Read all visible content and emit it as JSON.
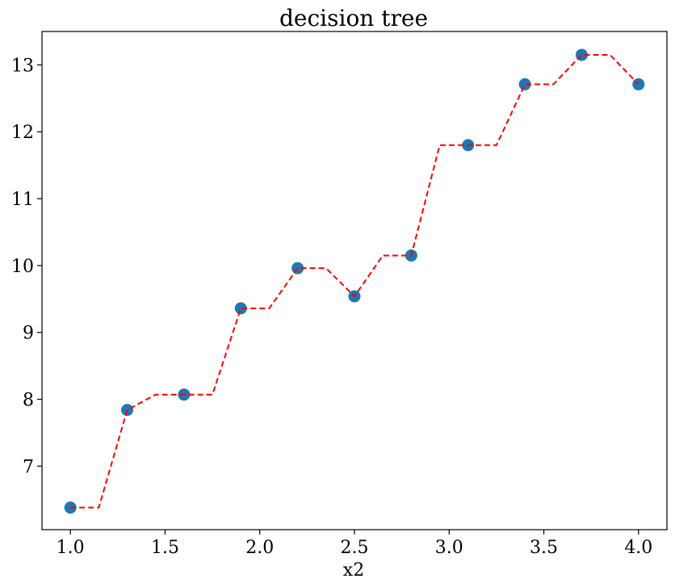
{
  "chart_data": {
    "type": "scatter",
    "title": "decision tree",
    "xlabel": "x2",
    "ylabel": "",
    "xlim": [
      0.85,
      4.15
    ],
    "ylim": [
      6.05,
      13.5
    ],
    "xticks": [
      1.0,
      1.5,
      2.0,
      2.5,
      3.0,
      3.5,
      4.0
    ],
    "xtick_labels": [
      "1.0",
      "1.5",
      "2.0",
      "2.5",
      "3.0",
      "3.5",
      "4.0"
    ],
    "yticks": [
      7,
      8,
      9,
      10,
      11,
      12,
      13
    ],
    "ytick_labels": [
      "7",
      "8",
      "9",
      "10",
      "11",
      "12",
      "13"
    ],
    "grid": false,
    "series": [
      {
        "kind": "scatter",
        "color": "#1f77b4",
        "points": [
          {
            "x": 1.0,
            "y": 6.38
          },
          {
            "x": 1.3,
            "y": 7.84
          },
          {
            "x": 1.6,
            "y": 8.07
          },
          {
            "x": 1.9,
            "y": 9.36
          },
          {
            "x": 2.2,
            "y": 9.96
          },
          {
            "x": 2.5,
            "y": 9.54
          },
          {
            "x": 2.8,
            "y": 10.15
          },
          {
            "x": 3.1,
            "y": 11.8
          },
          {
            "x": 3.4,
            "y": 12.71
          },
          {
            "x": 3.7,
            "y": 13.15
          },
          {
            "x": 4.0,
            "y": 12.71
          }
        ]
      },
      {
        "kind": "line",
        "style": "dashed",
        "color": "#ff0000",
        "points": [
          {
            "x": 1.0,
            "y": 6.38
          },
          {
            "x": 1.15,
            "y": 6.38
          },
          {
            "x": 1.3,
            "y": 7.84
          },
          {
            "x": 1.45,
            "y": 8.07
          },
          {
            "x": 1.75,
            "y": 8.07
          },
          {
            "x": 1.9,
            "y": 9.36
          },
          {
            "x": 2.05,
            "y": 9.36
          },
          {
            "x": 2.2,
            "y": 9.96
          },
          {
            "x": 2.35,
            "y": 9.96
          },
          {
            "x": 2.5,
            "y": 9.54
          },
          {
            "x": 2.65,
            "y": 10.15
          },
          {
            "x": 2.8,
            "y": 10.15
          },
          {
            "x": 2.95,
            "y": 11.8
          },
          {
            "x": 3.25,
            "y": 11.8
          },
          {
            "x": 3.4,
            "y": 12.71
          },
          {
            "x": 3.55,
            "y": 12.71
          },
          {
            "x": 3.7,
            "y": 13.15
          },
          {
            "x": 3.85,
            "y": 13.15
          },
          {
            "x": 4.0,
            "y": 12.71
          }
        ]
      }
    ]
  }
}
